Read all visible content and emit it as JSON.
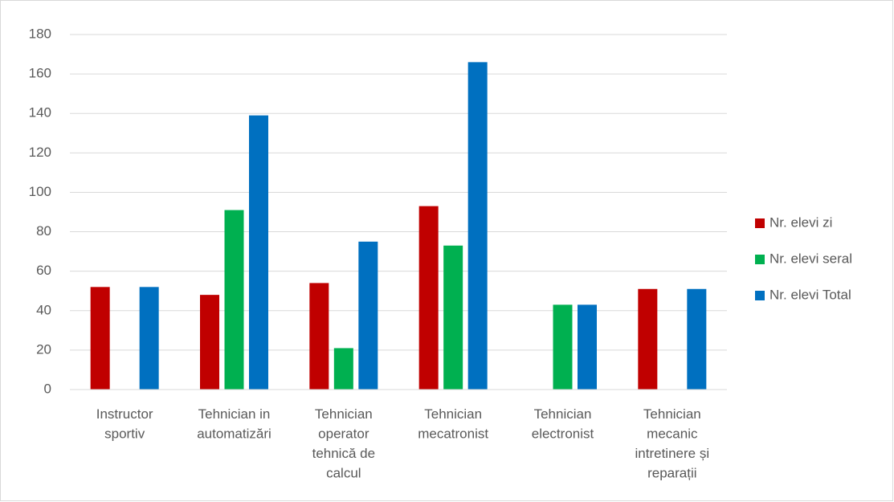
{
  "chart_data": {
    "type": "bar",
    "categories": [
      "Instructor sportiv",
      "Tehnician in automatizări",
      "Tehnician operator tehnică de calcul",
      "Tehnician mecatronist",
      "Tehnician electronist",
      "Tehnician mecanic intretinere și reparații"
    ],
    "series": [
      {
        "name": "Nr. elevi zi",
        "color": "#c00000",
        "values": [
          52,
          48,
          54,
          93,
          0,
          51
        ]
      },
      {
        "name": "Nr. elevi seral",
        "color": "#00b050",
        "values": [
          0,
          91,
          21,
          73,
          43,
          0
        ]
      },
      {
        "name": "Nr. elevi Total",
        "color": "#0070c0",
        "values": [
          52,
          139,
          75,
          166,
          43,
          51
        ]
      }
    ],
    "ylim": [
      0,
      180
    ],
    "yticks": [
      0,
      20,
      40,
      60,
      80,
      100,
      120,
      140,
      160,
      180
    ],
    "grid": true,
    "legend": "right"
  }
}
